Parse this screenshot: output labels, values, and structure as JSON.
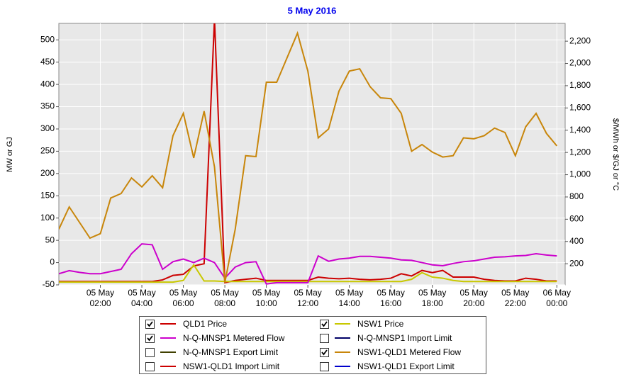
{
  "chart_data": {
    "type": "line",
    "title": "5 May 2016",
    "y_label": "MW or GJ",
    "y2_label": "$/MWh or $/GJ or °C",
    "grid": true,
    "xlim": [
      0,
      24.4
    ],
    "xticks": [
      {
        "value": 2,
        "label": "05 May 02:00"
      },
      {
        "value": 4,
        "label": "05 May 04:00"
      },
      {
        "value": 6,
        "label": "05 May 06:00"
      },
      {
        "value": 8,
        "label": "05 May 08:00"
      },
      {
        "value": 10,
        "label": "05 May 10:00"
      },
      {
        "value": 12,
        "label": "05 May 12:00"
      },
      {
        "value": 14,
        "label": "05 May 14:00"
      },
      {
        "value": 16,
        "label": "05 May 16:00"
      },
      {
        "value": 18,
        "label": "05 May 18:00"
      },
      {
        "value": 20,
        "label": "05 May 20:00"
      },
      {
        "value": 22,
        "label": "05 May 22:00"
      },
      {
        "value": 24,
        "label": "06 May 00:00"
      }
    ],
    "ylim": [
      -50,
      537
    ],
    "yticks": [
      -50,
      0,
      50,
      100,
      150,
      200,
      250,
      300,
      350,
      400,
      450,
      500
    ],
    "y2lim": [
      10,
      2360
    ],
    "y2ticks": [
      200,
      400,
      600,
      800,
      {
        "value": 1000,
        "label": "1,000"
      },
      {
        "value": 1200,
        "label": "1,200"
      },
      {
        "value": 1400,
        "label": "1,400"
      },
      {
        "value": 1600,
        "label": "1,600"
      },
      {
        "value": 1800,
        "label": "1,800"
      },
      {
        "value": 2000,
        "label": "2,000"
      },
      {
        "value": 2200,
        "label": "2,200"
      }
    ],
    "x": [
      0,
      0.5,
      1,
      1.5,
      2,
      2.5,
      3,
      3.5,
      4,
      4.5,
      5,
      5.5,
      6,
      6.5,
      7,
      7.5,
      8,
      8.5,
      9,
      9.5,
      10,
      10.5,
      11,
      11.5,
      12,
      12.5,
      13,
      13.5,
      14,
      14.5,
      15,
      15.5,
      16,
      16.5,
      17,
      17.5,
      18,
      18.5,
      19,
      19.5,
      20,
      20.5,
      21,
      21.5,
      22,
      22.5,
      23,
      23.5,
      24
    ],
    "series": [
      {
        "name": "QLD1 Price",
        "color": "#cc0000",
        "checked": true,
        "axis": "y2",
        "values": [
          40,
          40,
          40,
          40,
          40,
          40,
          40,
          40,
          40,
          40,
          55,
          95,
          105,
          180,
          200,
          2400,
          30,
          50,
          60,
          70,
          50,
          50,
          50,
          50,
          50,
          80,
          70,
          65,
          70,
          60,
          55,
          60,
          70,
          110,
          90,
          140,
          120,
          140,
          80,
          80,
          80,
          60,
          50,
          45,
          45,
          70,
          60,
          45,
          45
        ]
      },
      {
        "name": "NSW1 Price",
        "color": "#c8c800",
        "checked": true,
        "axis": "y2",
        "values": [
          35,
          35,
          35,
          35,
          35,
          35,
          35,
          35,
          35,
          35,
          35,
          35,
          50,
          190,
          45,
          45,
          40,
          40,
          40,
          40,
          40,
          40,
          40,
          40,
          40,
          40,
          40,
          40,
          40,
          40,
          40,
          40,
          40,
          40,
          60,
          120,
          80,
          70,
          50,
          40,
          40,
          40,
          40,
          40,
          40,
          40,
          40,
          40,
          40
        ]
      },
      {
        "name": "N-Q-MNSP1 Metered Flow",
        "color": "#cc00cc",
        "checked": true,
        "values": [
          -25,
          -18,
          -22,
          -25,
          -25,
          -20,
          -15,
          20,
          42,
          40,
          -15,
          2,
          8,
          0,
          10,
          0,
          -35,
          -10,
          0,
          2,
          -48,
          -45,
          -45,
          -45,
          -45,
          15,
          3,
          8,
          10,
          14,
          14,
          12,
          10,
          6,
          5,
          0,
          -5,
          -7,
          -2,
          2,
          4,
          8,
          12,
          13,
          15,
          16,
          20,
          17,
          15
        ]
      },
      {
        "name": "N-Q-MNSP1 Import Limit",
        "color": "#000066",
        "checked": false
      },
      {
        "name": "N-Q-MNSP1 Export Limit",
        "color": "#404000",
        "checked": false
      },
      {
        "name": "NSW1-QLD1 Metered Flow",
        "color": "#c8860b",
        "checked": true,
        "values": [
          75,
          125,
          90,
          55,
          65,
          145,
          155,
          190,
          170,
          195,
          168,
          285,
          335,
          235,
          340,
          215,
          -45,
          75,
          240,
          238,
          405,
          405,
          460,
          515,
          430,
          280,
          300,
          385,
          430,
          435,
          395,
          370,
          368,
          335,
          250,
          265,
          248,
          237,
          240,
          280,
          278,
          285,
          302,
          292,
          240,
          305,
          335,
          290,
          262
        ]
      },
      {
        "name": "NSW1-QLD1 Import Limit",
        "color": "#cc0000",
        "checked": false
      },
      {
        "name": "NSW1-QLD1 Export Limit",
        "color": "#0000cc",
        "checked": false
      }
    ]
  }
}
